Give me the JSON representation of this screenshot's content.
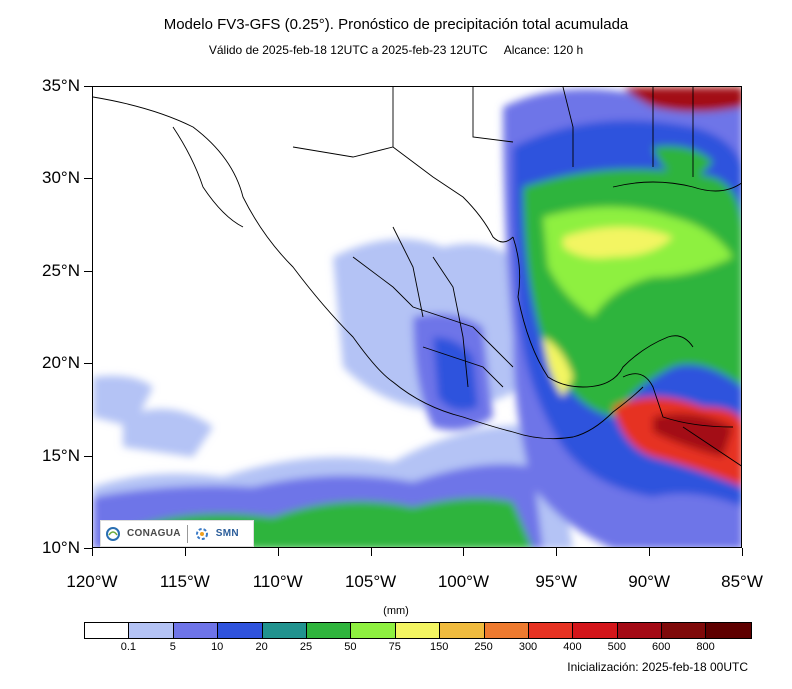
{
  "header": {
    "title": "Modelo FV3-GFS (0.25°). Pronóstico de precipitación total acumulada",
    "subtitle_valid": "Válido de 2025-feb-18 12UTC a 2025-feb-23 12UTC",
    "subtitle_range": "Alcance: 120 h"
  },
  "axes": {
    "lat_labels": [
      "35°N",
      "30°N",
      "25°N",
      "20°N",
      "15°N",
      "10°N"
    ],
    "lon_labels": [
      "120°W",
      "115°W",
      "110°W",
      "105°W",
      "100°W",
      "95°W",
      "90°W",
      "85°W"
    ]
  },
  "legend": {
    "unit": "(mm)",
    "levels": [
      "0.1",
      "5",
      "10",
      "20",
      "25",
      "50",
      "75",
      "150",
      "250",
      "300",
      "400",
      "500",
      "600",
      "800"
    ],
    "colors": [
      "#ffffff",
      "#b4c3f5",
      "#6e74e8",
      "#2f53dd",
      "#21938f",
      "#2fb43c",
      "#8ef040",
      "#f3f562",
      "#f0bb3e",
      "#ee7a2f",
      "#e63222",
      "#d3151a",
      "#a30a15",
      "#7f0a0a",
      "#5e0000"
    ]
  },
  "footer": {
    "init": "Inicialización: 2025-feb-18 00UTC"
  },
  "logos": {
    "conagua": "CONAGUA",
    "smn": "SMN"
  }
}
